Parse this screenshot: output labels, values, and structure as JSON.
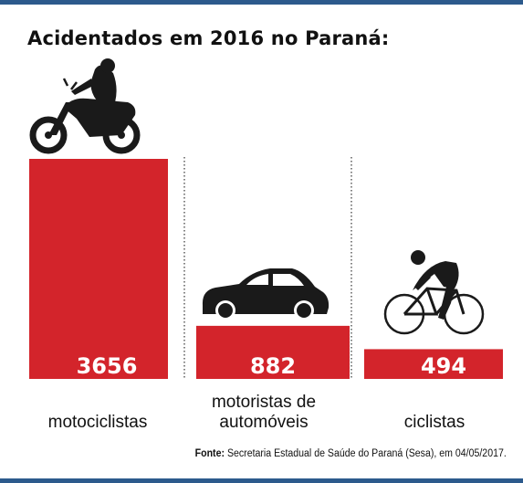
{
  "colors": {
    "bar": "#d3242b",
    "frame": "#2c5a8c",
    "icon": "#1a1a1a",
    "divider": "#333333"
  },
  "chart_data": {
    "type": "bar",
    "title": "Acidentados em 2016 no Paraná:",
    "categories": [
      "motociclistas",
      "motoristas de automóveis",
      "ciclistas"
    ],
    "category_lines": [
      [
        "motociclistas"
      ],
      [
        "motoristas de",
        "automóveis"
      ],
      [
        "ciclistas"
      ]
    ],
    "values": [
      3656,
      882,
      494
    ],
    "value_labels": [
      "3656",
      "882",
      "494"
    ],
    "icons": [
      "motorcycle-icon",
      "car-icon",
      "cyclist-icon"
    ],
    "ylim": [
      0,
      3656
    ]
  },
  "source": {
    "label": "Fonte:",
    "text": "Secretaria Estadual de Saúde do Paraná (Sesa), em 04/05/2017."
  }
}
